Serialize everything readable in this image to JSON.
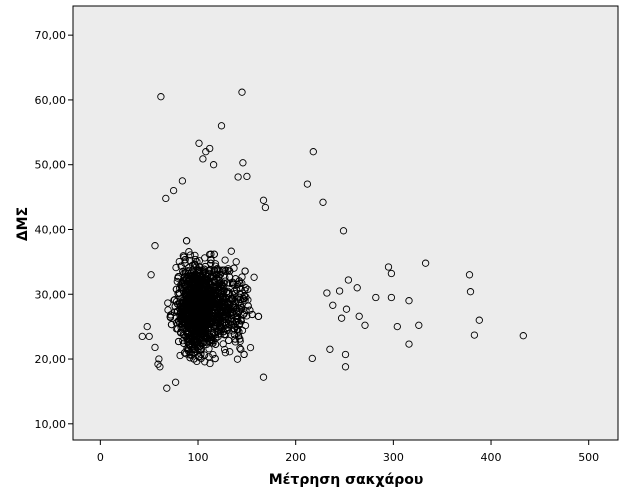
{
  "chart_data": {
    "type": "scatter",
    "title": "",
    "xlabel": "Μέτρηση σακχάρου",
    "ylabel": "ΔΜΣ",
    "xlim": [
      -28,
      530
    ],
    "ylim": [
      7.5,
      74.5
    ],
    "x_ticks": [
      0,
      100,
      200,
      300,
      400,
      500
    ],
    "x_tick_labels": [
      "0",
      "100",
      "200",
      "300",
      "400",
      "500"
    ],
    "y_ticks": [
      10,
      20,
      30,
      40,
      50,
      60,
      70
    ],
    "y_tick_labels": [
      "10,00",
      "20,00",
      "30,00",
      "40,00",
      "50,00",
      "60,00",
      "70,00"
    ],
    "grid": false,
    "marker": "open-circle",
    "colors": {
      "plot_bg": "#ececec",
      "marker_stroke": "#000000",
      "axis": "#000000"
    },
    "dense_cluster": {
      "x_center": 98,
      "y_center": 28,
      "x_range": [
        45,
        200
      ],
      "y_range": [
        15.5,
        46
      ]
    },
    "points": [
      [
        62,
        60.5
      ],
      [
        145,
        61.2
      ],
      [
        124,
        56
      ],
      [
        101,
        53.3
      ],
      [
        112,
        52.5
      ],
      [
        108,
        52
      ],
      [
        218,
        52
      ],
      [
        146,
        50.3
      ],
      [
        105,
        50.9
      ],
      [
        116,
        50
      ],
      [
        212,
        47
      ],
      [
        150,
        48.2
      ],
      [
        141,
        48.1
      ],
      [
        167,
        44.5
      ],
      [
        228,
        44.2
      ],
      [
        169,
        43.4
      ],
      [
        249,
        39.8
      ],
      [
        295,
        34.2
      ],
      [
        298,
        33.2
      ],
      [
        333,
        34.8
      ],
      [
        378,
        33
      ],
      [
        379,
        30.4
      ],
      [
        254,
        32.2
      ],
      [
        263,
        31
      ],
      [
        245,
        30.5
      ],
      [
        232,
        30.2
      ],
      [
        282,
        29.5
      ],
      [
        298,
        29.5
      ],
      [
        316,
        29
      ],
      [
        252,
        27.7
      ],
      [
        238,
        28.3
      ],
      [
        265,
        26.6
      ],
      [
        247,
        26.3
      ],
      [
        271,
        25.2
      ],
      [
        304,
        25
      ],
      [
        326,
        25.2
      ],
      [
        388,
        26
      ],
      [
        383,
        23.7
      ],
      [
        433,
        23.6
      ],
      [
        316,
        22.3
      ],
      [
        235,
        21.5
      ],
      [
        251,
        20.7
      ],
      [
        217,
        20.1
      ],
      [
        251,
        18.8
      ],
      [
        167,
        17.2
      ],
      [
        43,
        23.5
      ],
      [
        50,
        23.5
      ],
      [
        48,
        25
      ],
      [
        56,
        21.8
      ],
      [
        60,
        20
      ],
      [
        61,
        18.8
      ],
      [
        68,
        15.5
      ],
      [
        77,
        16.4
      ],
      [
        56,
        37.5
      ],
      [
        75,
        46
      ],
      [
        67,
        44.8
      ],
      [
        84,
        47.5
      ],
      [
        52,
        33
      ],
      [
        59,
        19.2
      ]
    ]
  }
}
